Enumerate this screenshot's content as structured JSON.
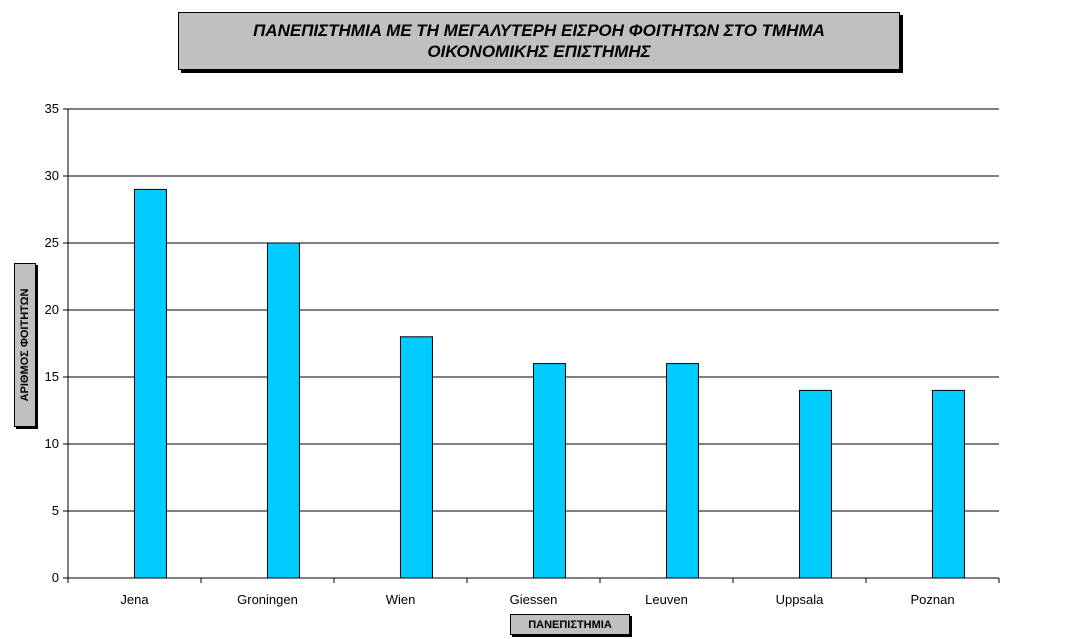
{
  "chart_data": {
    "type": "bar",
    "title_lines": [
      "ΠΑΝΕΠΙΣΤΗΜΙΑ ΜΕ ΤΗ ΜΕΓΑΛΥΤΕΡΗ ΕΙΣΡΟΗ ΦΟΙΤΗΤΩΝ ΣΤΟ ΤΜΗΜΑ",
      "ΟΙΚΟΝΟΜΙΚΗΣ ΕΠΙΣΤΗΜΗΣ"
    ],
    "xlabel": "ΠΑΝΕΠΙΣΤΗΜΙΑ",
    "ylabel": "ΑΡΙΘΜΟΣ ΦΟΙΤΗΤΩΝ",
    "categories": [
      "Jena",
      "Groningen",
      "Wien",
      "Giessen",
      "Leuven",
      "Uppsala",
      "Poznan"
    ],
    "values": [
      29,
      25,
      18,
      16,
      16,
      14,
      14
    ],
    "ylim": [
      0,
      35
    ],
    "yticks": [
      0,
      5,
      10,
      15,
      20,
      25,
      30,
      35
    ],
    "grid": true,
    "bar_color": "#00ccff"
  }
}
